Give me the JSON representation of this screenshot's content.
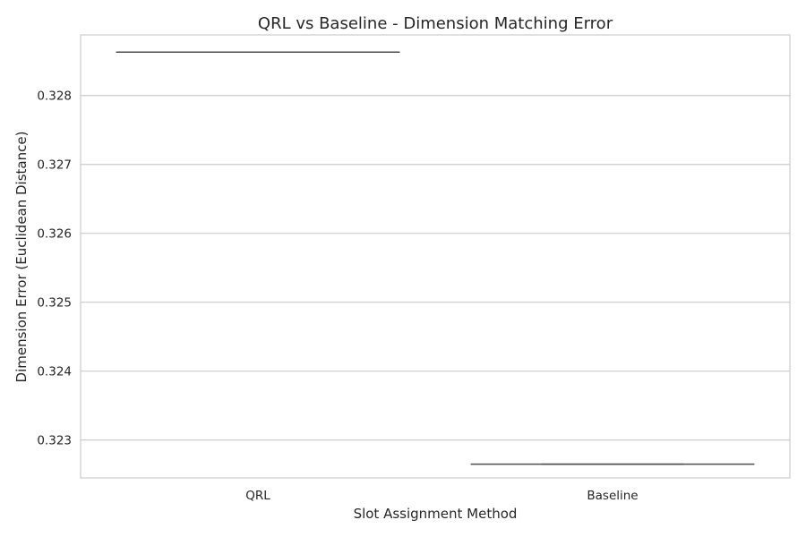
{
  "chart_data": {
    "type": "box",
    "title": "QRL vs Baseline - Dimension Matching Error",
    "xlabel": "Slot Assignment Method",
    "ylabel": "Dimension Error (Euclidean Distance)",
    "categories": [
      "QRL",
      "Baseline"
    ],
    "values": [
      0.32863,
      0.32265
    ],
    "ylim": [
      0.32245,
      0.32888
    ],
    "yticks": [
      0.323,
      0.324,
      0.325,
      0.326,
      0.327,
      0.328
    ],
    "ytick_labels": [
      "0.323",
      "0.324",
      "0.325",
      "0.326",
      "0.327",
      "0.328"
    ],
    "grid": true,
    "colors": {
      "grid": "#cccccc",
      "frame": "#cccccc",
      "box_line": "#4d4d4d",
      "text": "#262626"
    }
  }
}
